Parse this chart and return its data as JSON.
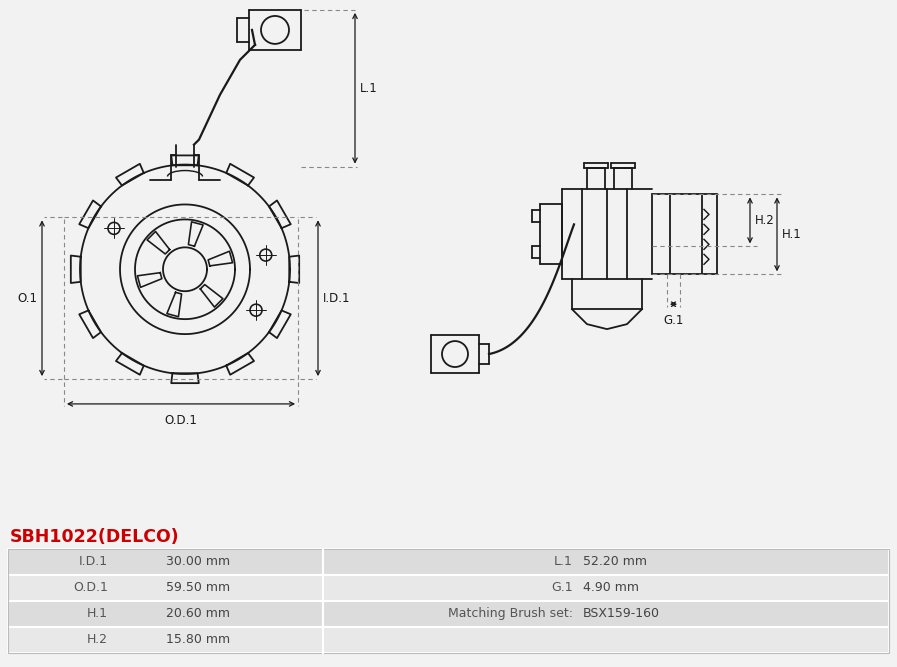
{
  "title": "SBH1022(DELCO)",
  "title_color": "#cc0000",
  "bg_color": "#f2f2f2",
  "table_rows": [
    {
      "label1": "I.D.1",
      "val1": "30.00 mm",
      "label2": "L.1",
      "val2": "52.20 mm"
    },
    {
      "label1": "O.D.1",
      "val1": "59.50 mm",
      "label2": "G.1",
      "val2": "4.90 mm"
    },
    {
      "label1": "H.1",
      "val1": "20.60 mm",
      "label2": "Matching Brush set:",
      "val2": "BSX159-160"
    },
    {
      "label1": "H.2",
      "val1": "15.80 mm",
      "label2": "",
      "val2": ""
    }
  ],
  "lc": "#1a1a1a",
  "dc": "#888888",
  "bg": "#f2f2f2",
  "table_row_bg": [
    "#dcdcdc",
    "#e8e8e8",
    "#dcdcdc",
    "#e8e8e8"
  ],
  "table_sep_color": "#ffffff",
  "table_border_color": "#bbbbbb"
}
